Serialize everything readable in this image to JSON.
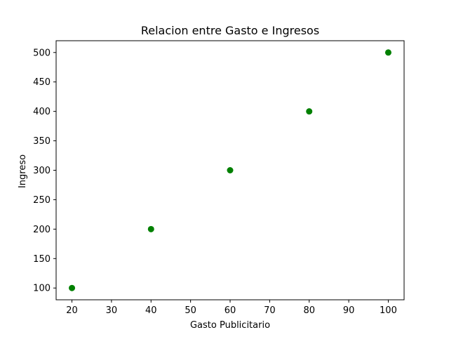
{
  "chart_data": {
    "type": "scatter",
    "title": "Relacion entre Gasto e Ingresos",
    "xlabel": "Gasto Publicitario",
    "ylabel": "Ingreso",
    "x": [
      20,
      40,
      60,
      80,
      100
    ],
    "y": [
      100,
      200,
      300,
      400,
      500
    ],
    "xlim": [
      16,
      104
    ],
    "ylim": [
      80,
      520
    ],
    "xticks": [
      20,
      30,
      40,
      50,
      60,
      70,
      80,
      90,
      100
    ],
    "yticks": [
      100,
      150,
      200,
      250,
      300,
      350,
      400,
      450,
      500
    ],
    "marker_color": "#008000",
    "grid": false,
    "legend": "none"
  }
}
